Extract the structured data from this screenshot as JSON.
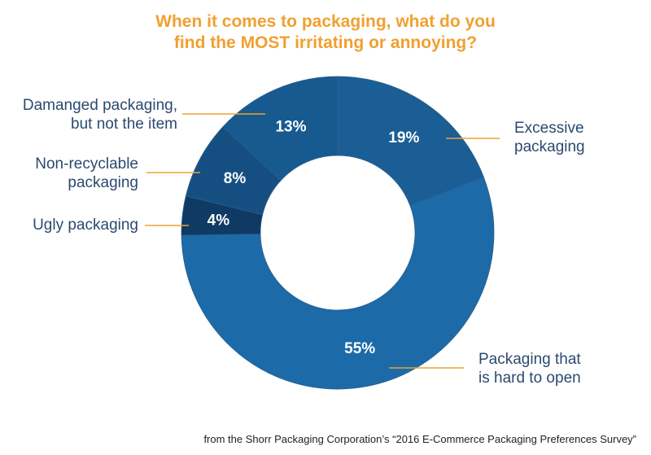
{
  "chart_data": {
    "type": "pie",
    "variant": "donut",
    "title_lines": [
      "When it comes to packaging, what do you",
      "find the MOST irritating or annoying?"
    ],
    "categories": [
      "Excessive packaging",
      "Packaging that is hard to open",
      "Ugly packaging",
      "Non-recyclable packaging",
      "Damanged packaging, but not the item"
    ],
    "values": [
      19,
      55,
      4,
      8,
      13
    ],
    "value_labels": [
      "19%",
      "55%",
      "4%",
      "8%",
      "13%"
    ],
    "label_lines": [
      [
        "Excessive",
        "packaging"
      ],
      [
        "Packaging that",
        "is hard to open"
      ],
      [
        "Ugly packaging"
      ],
      [
        "Non-recyclable",
        "packaging"
      ],
      [
        "Damanged packaging,",
        "but not the item"
      ]
    ],
    "colors": [
      "#1b5e95",
      "#1c6aa8",
      "#0f3a63",
      "#154f82",
      "#175a90"
    ],
    "title_color": "#f0a030",
    "leader_color": "#f0a030",
    "label_color": "#2b4a6f",
    "value_label_color": "#ffffff"
  },
  "footer": {
    "text": "from the Shorr Packaging Corporation’s “2016 E-Commerce Packaging Preferences Survey”"
  }
}
